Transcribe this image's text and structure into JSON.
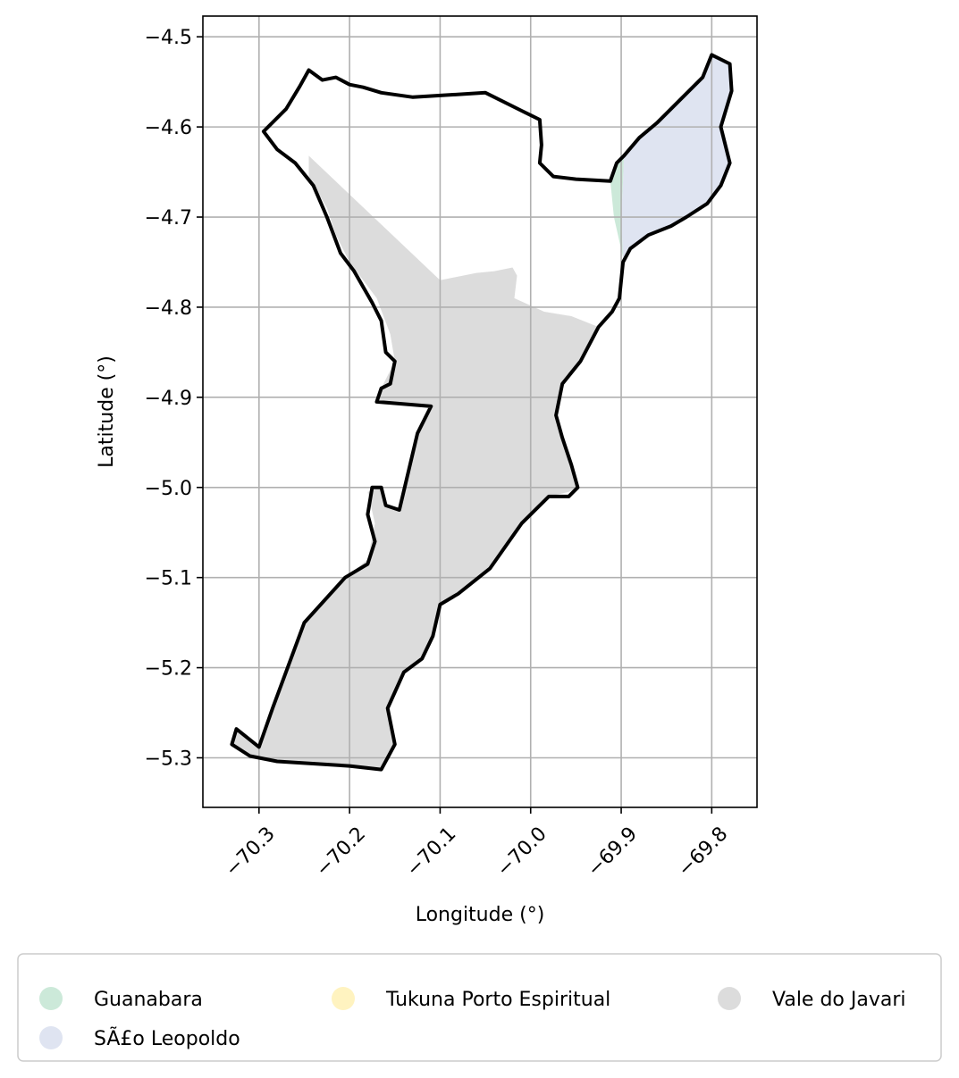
{
  "chart_data": {
    "type": "map",
    "title": "",
    "xlabel": "Longitude (°)",
    "ylabel": "Latitude (°)",
    "xlim": [
      -70.362,
      -69.75
    ],
    "ylim": [
      -5.355,
      -4.477
    ],
    "x_ticks": [
      -70.3,
      -70.2,
      -70.1,
      -70.0,
      -69.9,
      -69.8
    ],
    "x_tick_labels": [
      "−70.3",
      "−70.2",
      "−70.1",
      "−70.0",
      "−69.9",
      "−69.8"
    ],
    "y_ticks": [
      -4.5,
      -4.6,
      -4.7,
      -4.8,
      -4.9,
      -5.0,
      -5.1,
      -5.2,
      -5.3
    ],
    "y_tick_labels": [
      "−4.5",
      "−4.6",
      "−4.7",
      "−4.8",
      "−4.9",
      "−5.0",
      "−5.1",
      "−5.2",
      "−5.3"
    ],
    "grid": true,
    "legend_position": "bottom",
    "legend": [
      {
        "label": "Guanabara",
        "color": "#cce9d9"
      },
      {
        "label": "Tukuna Porto Espiritual",
        "color": "#fff3c0"
      },
      {
        "label": "Vale do Javari",
        "color": "#dcdcdc"
      },
      {
        "label": "SÃ£o Leopoldo",
        "color": "#dfe4f1"
      }
    ],
    "regions": [
      {
        "name": "Vale do Javari",
        "color": "#dcdcdc",
        "coords": [
          [
            -70.245,
            -4.632
          ],
          [
            -70.1,
            -4.77
          ],
          [
            -70.06,
            -4.762
          ],
          [
            -70.04,
            -4.76
          ],
          [
            -70.02,
            -4.756
          ],
          [
            -70.015,
            -4.765
          ],
          [
            -70.018,
            -4.79
          ],
          [
            -69.985,
            -4.805
          ],
          [
            -69.955,
            -4.81
          ],
          [
            -69.925,
            -4.822
          ],
          [
            -69.945,
            -4.86
          ],
          [
            -69.965,
            -4.885
          ],
          [
            -69.972,
            -4.92
          ],
          [
            -69.965,
            -4.945
          ],
          [
            -69.955,
            -4.975
          ],
          [
            -69.948,
            -5.0
          ],
          [
            -69.958,
            -5.005
          ],
          [
            -69.98,
            -5.01
          ],
          [
            -70.01,
            -5.04
          ],
          [
            -70.045,
            -5.09
          ],
          [
            -70.08,
            -5.118
          ],
          [
            -70.1,
            -5.13
          ],
          [
            -70.108,
            -5.165
          ],
          [
            -70.12,
            -5.19
          ],
          [
            -70.14,
            -5.205
          ],
          [
            -70.158,
            -5.245
          ],
          [
            -70.15,
            -5.285
          ],
          [
            -70.165,
            -5.313
          ],
          [
            -70.2,
            -5.309
          ],
          [
            -70.28,
            -5.304
          ],
          [
            -70.31,
            -5.298
          ],
          [
            -70.33,
            -5.285
          ],
          [
            -70.325,
            -5.268
          ],
          [
            -70.3,
            -5.288
          ],
          [
            -70.285,
            -5.245
          ],
          [
            -70.25,
            -5.15
          ],
          [
            -70.205,
            -5.1
          ],
          [
            -70.18,
            -5.08
          ],
          [
            -70.172,
            -5.04
          ],
          [
            -70.18,
            -5.005
          ],
          [
            -70.165,
            -5.0
          ],
          [
            -70.16,
            -5.02
          ],
          [
            -70.145,
            -5.025
          ],
          [
            -70.125,
            -4.94
          ],
          [
            -70.11,
            -4.91
          ],
          [
            -70.17,
            -4.905
          ],
          [
            -70.165,
            -4.89
          ],
          [
            -70.15,
            -4.86
          ],
          [
            -70.155,
            -4.83
          ],
          [
            -70.17,
            -4.79
          ],
          [
            -70.2,
            -4.75
          ],
          [
            -70.215,
            -4.72
          ],
          [
            -70.225,
            -4.69
          ],
          [
            -70.245,
            -4.655
          ]
        ]
      },
      {
        "name": "SÃ£o Leopoldo",
        "color": "#dfe4f1",
        "coords": [
          [
            -69.897,
            -4.632
          ],
          [
            -69.88,
            -4.612
          ],
          [
            -69.86,
            -4.595
          ],
          [
            -69.835,
            -4.57
          ],
          [
            -69.81,
            -4.545
          ],
          [
            -69.8,
            -4.52
          ],
          [
            -69.78,
            -4.53
          ],
          [
            -69.778,
            -4.56
          ],
          [
            -69.79,
            -4.6
          ],
          [
            -69.78,
            -4.64
          ],
          [
            -69.79,
            -4.665
          ],
          [
            -69.805,
            -4.685
          ],
          [
            -69.828,
            -4.7
          ],
          [
            -69.845,
            -4.71
          ],
          [
            -69.87,
            -4.72
          ],
          [
            -69.89,
            -4.735
          ],
          [
            -69.898,
            -4.745
          ],
          [
            -69.9,
            -4.7
          ],
          [
            -69.898,
            -4.66
          ]
        ]
      },
      {
        "name": "Guanabara",
        "color": "#cce9d9",
        "coords": [
          [
            -69.897,
            -4.632
          ],
          [
            -69.905,
            -4.64
          ],
          [
            -69.912,
            -4.66
          ],
          [
            -69.908,
            -4.7
          ],
          [
            -69.898,
            -4.745
          ],
          [
            -69.9,
            -4.7
          ],
          [
            -69.898,
            -4.66
          ]
        ]
      }
    ],
    "boundary": [
      [
        -70.245,
        -4.537
      ],
      [
        -70.23,
        -4.548
      ],
      [
        -70.215,
        -4.545
      ],
      [
        -70.2,
        -4.553
      ],
      [
        -70.185,
        -4.556
      ],
      [
        -70.165,
        -4.562
      ],
      [
        -70.13,
        -4.567
      ],
      [
        -70.05,
        -4.562
      ],
      [
        -70.01,
        -4.582
      ],
      [
        -69.99,
        -4.592
      ],
      [
        -69.988,
        -4.62
      ],
      [
        -69.99,
        -4.64
      ],
      [
        -69.975,
        -4.655
      ],
      [
        -69.95,
        -4.658
      ],
      [
        -69.912,
        -4.66
      ],
      [
        -69.905,
        -4.64
      ],
      [
        -69.897,
        -4.632
      ],
      [
        -69.88,
        -4.612
      ],
      [
        -69.86,
        -4.595
      ],
      [
        -69.835,
        -4.57
      ],
      [
        -69.81,
        -4.545
      ],
      [
        -69.8,
        -4.52
      ],
      [
        -69.78,
        -4.53
      ],
      [
        -69.778,
        -4.56
      ],
      [
        -69.79,
        -4.6
      ],
      [
        -69.78,
        -4.64
      ],
      [
        -69.79,
        -4.665
      ],
      [
        -69.805,
        -4.685
      ],
      [
        -69.828,
        -4.7
      ],
      [
        -69.845,
        -4.71
      ],
      [
        -69.87,
        -4.72
      ],
      [
        -69.89,
        -4.735
      ],
      [
        -69.898,
        -4.75
      ],
      [
        -69.902,
        -4.79
      ],
      [
        -69.91,
        -4.805
      ],
      [
        -69.925,
        -4.822
      ],
      [
        -69.945,
        -4.86
      ],
      [
        -69.965,
        -4.885
      ],
      [
        -69.972,
        -4.92
      ],
      [
        -69.965,
        -4.945
      ],
      [
        -69.955,
        -4.975
      ],
      [
        -69.948,
        -5.0
      ],
      [
        -69.958,
        -5.01
      ],
      [
        -69.98,
        -5.01
      ],
      [
        -70.01,
        -5.04
      ],
      [
        -70.045,
        -5.09
      ],
      [
        -70.08,
        -5.118
      ],
      [
        -70.1,
        -5.13
      ],
      [
        -70.108,
        -5.165
      ],
      [
        -70.12,
        -5.19
      ],
      [
        -70.14,
        -5.205
      ],
      [
        -70.158,
        -5.245
      ],
      [
        -70.15,
        -5.285
      ],
      [
        -70.165,
        -5.313
      ],
      [
        -70.2,
        -5.309
      ],
      [
        -70.28,
        -5.304
      ],
      [
        -70.31,
        -5.298
      ],
      [
        -70.33,
        -5.285
      ],
      [
        -70.325,
        -5.268
      ],
      [
        -70.3,
        -5.288
      ],
      [
        -70.285,
        -5.245
      ],
      [
        -70.25,
        -5.15
      ],
      [
        -70.205,
        -5.1
      ],
      [
        -70.18,
        -5.085
      ],
      [
        -70.172,
        -5.06
      ],
      [
        -70.18,
        -5.03
      ],
      [
        -70.175,
        -5.0
      ],
      [
        -70.165,
        -5.0
      ],
      [
        -70.16,
        -5.02
      ],
      [
        -70.145,
        -5.025
      ],
      [
        -70.125,
        -4.94
      ],
      [
        -70.11,
        -4.91
      ],
      [
        -70.17,
        -4.905
      ],
      [
        -70.165,
        -4.89
      ],
      [
        -70.155,
        -4.885
      ],
      [
        -70.15,
        -4.86
      ],
      [
        -70.16,
        -4.85
      ],
      [
        -70.165,
        -4.815
      ],
      [
        -70.175,
        -4.795
      ],
      [
        -70.195,
        -4.76
      ],
      [
        -70.21,
        -4.74
      ],
      [
        -70.225,
        -4.7
      ],
      [
        -70.24,
        -4.665
      ],
      [
        -70.26,
        -4.64
      ],
      [
        -70.28,
        -4.625
      ],
      [
        -70.295,
        -4.605
      ],
      [
        -70.27,
        -4.58
      ],
      [
        -70.255,
        -4.555
      ],
      [
        -70.245,
        -4.537
      ]
    ]
  }
}
